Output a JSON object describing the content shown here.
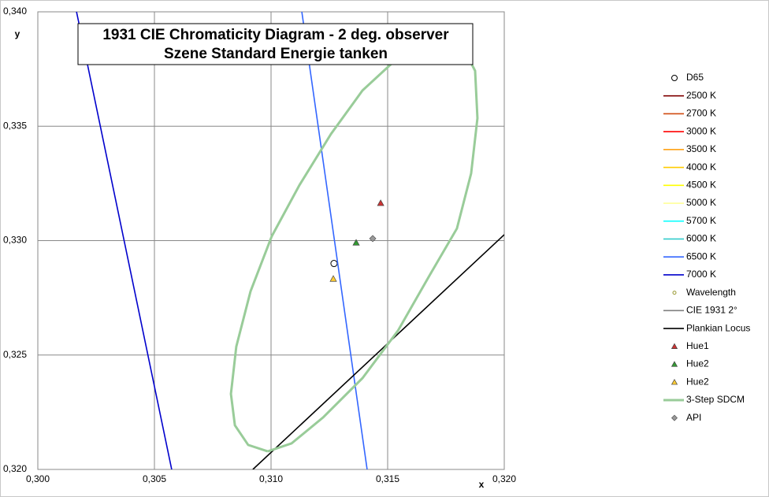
{
  "chart_data": {
    "type": "scatter",
    "title": "1931 CIE Chromaticity Diagram - 2 deg. observer",
    "subtitle": "Szene Standard Energie tanken",
    "x_label": "x",
    "y_label": "y",
    "xlim": [
      0.3,
      0.32
    ],
    "ylim": [
      0.32,
      0.34
    ],
    "xticks": [
      {
        "value": 0.3,
        "label": "0,300"
      },
      {
        "value": 0.305,
        "label": "0,305"
      },
      {
        "value": 0.31,
        "label": "0,310"
      },
      {
        "value": 0.315,
        "label": "0,315"
      },
      {
        "value": 0.32,
        "label": "0,320"
      }
    ],
    "yticks": [
      {
        "value": 0.32,
        "label": "0,320"
      },
      {
        "value": 0.325,
        "label": "0,325"
      },
      {
        "value": 0.33,
        "label": "0,330"
      },
      {
        "value": 0.335,
        "label": "0,335"
      },
      {
        "value": 0.34,
        "label": "0,340"
      }
    ],
    "grid": true,
    "legend": "right",
    "series": [
      {
        "name": "D65",
        "color": "#000000",
        "marker": "circle",
        "x": [
          0.3127
        ],
        "y": [
          0.329
        ]
      },
      {
        "name": "2500 K",
        "color": "#800000",
        "marker": "line",
        "x": [],
        "y": []
      },
      {
        "name": "2700 K",
        "color": "#d04a10",
        "marker": "line",
        "x": [],
        "y": []
      },
      {
        "name": "3000 K",
        "color": "#ff0000",
        "marker": "line",
        "x": [],
        "y": []
      },
      {
        "name": "3500 K",
        "color": "#ff9900",
        "marker": "line",
        "x": [],
        "y": []
      },
      {
        "name": "4000 K",
        "color": "#ffcc00",
        "marker": "line",
        "x": [],
        "y": []
      },
      {
        "name": "4500 K",
        "color": "#ffff00",
        "marker": "line",
        "x": [],
        "y": []
      },
      {
        "name": "5000 K",
        "color": "#ffff99",
        "marker": "line",
        "x": [],
        "y": []
      },
      {
        "name": "5700 K",
        "color": "#00ffff",
        "marker": "line",
        "x": [],
        "y": []
      },
      {
        "name": "6000 K",
        "color": "#33cccc",
        "marker": "line",
        "x": [],
        "y": []
      },
      {
        "name": "6500 K",
        "color": "#3366ff",
        "marker": "line",
        "x": [
          0.31132,
          0.31412
        ],
        "y": [
          0.34,
          0.32
        ]
      },
      {
        "name": "7000 K",
        "color": "#0000cc",
        "marker": "line",
        "x": [
          0.30166,
          0.30574
        ],
        "y": [
          0.34,
          0.32
        ]
      },
      {
        "name": "Wavelength",
        "color": "#999933",
        "marker": "dot",
        "x": [],
        "y": []
      },
      {
        "name": "CIE 1931 2°",
        "color": "#808080",
        "marker": "line",
        "x": [],
        "y": []
      },
      {
        "name": "Plankian Locus",
        "color": "#000000",
        "marker": "line",
        "x": [
          0.30922,
          0.32
        ],
        "y": [
          0.32,
          0.33026
        ]
      },
      {
        "name": "Hue1",
        "color": "#cc3333",
        "marker": "triangle",
        "x": [
          0.3147
        ],
        "y": [
          0.33164
        ]
      },
      {
        "name": "Hue2",
        "color": "#339933",
        "marker": "triangle",
        "x": [
          0.31365
        ],
        "y": [
          0.32991
        ]
      },
      {
        "name": "Hue2",
        "color": "#ffcc33",
        "marker": "triangle",
        "x": [
          0.31267
        ],
        "y": [
          0.32833
        ]
      },
      {
        "name": "3-Step SDCM",
        "color": "#99cc99",
        "marker": "thick-line",
        "x": [
          0.30986,
          0.30902,
          0.30845,
          0.30828,
          0.30851,
          0.30912,
          0.31003,
          0.31122,
          0.31257,
          0.31392,
          0.31527,
          0.31679,
          0.31814,
          0.31875,
          0.31885,
          0.31858,
          0.31797,
          0.31679,
          0.31544,
          0.31392,
          0.31223,
          0.31088,
          0.30986
        ],
        "y": [
          0.32079,
          0.32107,
          0.32193,
          0.3233,
          0.32537,
          0.32778,
          0.33019,
          0.33243,
          0.33466,
          0.33656,
          0.33783,
          0.33862,
          0.33862,
          0.33742,
          0.33535,
          0.33294,
          0.33053,
          0.32847,
          0.32606,
          0.32399,
          0.32227,
          0.32114,
          0.32079
        ]
      },
      {
        "name": "API",
        "color": "#999999",
        "marker": "diamond",
        "x": [
          0.31436
        ],
        "y": [
          0.33009
        ]
      }
    ]
  }
}
